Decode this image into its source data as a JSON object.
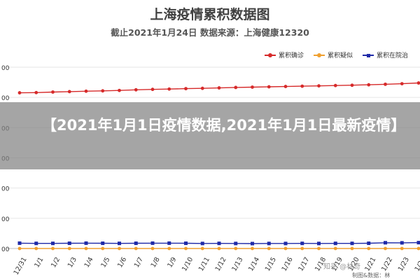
{
  "title": "上海疫情累积数据图",
  "subtitle": "截止2021年1月24日 数据来源：上海健康12320",
  "colors": {
    "confirmed": "#d62a2a",
    "suspected": "#f0a030",
    "hospitalized": "#1f2aa8",
    "grid": "#e6e6e6",
    "axis": "#bfbfbf"
  },
  "legend": [
    {
      "label": "累积确诊",
      "series": "confirmed",
      "marker": "circle-icon"
    },
    {
      "label": "累积疑似",
      "series": "suspected",
      "marker": "circle-icon"
    },
    {
      "label": "累积在院治",
      "series": "hospitalized",
      "marker": "square-icon"
    }
  ],
  "overlay_text": "【2021年1月1日疫情数据,2021年1月1日最新疫情】",
  "watermark": "知乎 @林奇",
  "credit": "制图&数据：林",
  "chart_data": {
    "type": "line",
    "categories": [
      "12/31",
      "1/1",
      "1/2",
      "1/3",
      "1/4",
      "1/5",
      "1/6",
      "1/7",
      "1/8",
      "1/9",
      "1/10",
      "1/11",
      "1/12",
      "1/13",
      "1/14",
      "1/15",
      "1/16",
      "1/17",
      "1/18",
      "1/19",
      "1/20",
      "1/21",
      "1/22",
      "1/23",
      "1/24"
    ],
    "series": [
      {
        "name": "累积确诊",
        "key": "confirmed",
        "values": [
          1460,
          1462,
          1467,
          1471,
          1475,
          1478,
          1482,
          1488,
          1492,
          1495,
          1499,
          1502,
          1506,
          1510,
          1513,
          1516,
          1519,
          1522,
          1525,
          1528,
          1531,
          1535,
          1540,
          1545,
          1552
        ]
      },
      {
        "name": "累积疑似",
        "key": "suspected",
        "values": [
          0,
          0,
          0,
          0,
          0,
          0,
          0,
          0,
          0,
          0,
          0,
          0,
          0,
          0,
          0,
          0,
          0,
          0,
          0,
          0,
          0,
          0,
          0,
          0,
          0
        ]
      },
      {
        "name": "累积在院治",
        "key": "hospitalized",
        "values": [
          50,
          48,
          48,
          49,
          50,
          49,
          48,
          49,
          50,
          50,
          49,
          47,
          48,
          47,
          46,
          47,
          47,
          48,
          47,
          48,
          48,
          49,
          54,
          53,
          55
        ]
      }
    ],
    "ylim": [
      0,
      1700
    ],
    "yticks_visible": [
      "00",
      "00",
      "00",
      "00",
      "00",
      "00",
      "00"
    ],
    "grid": true,
    "legend_position": "top-right"
  }
}
